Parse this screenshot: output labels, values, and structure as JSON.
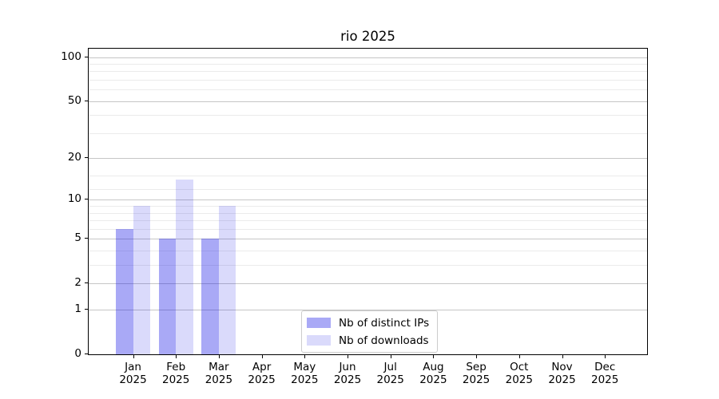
{
  "title": "rio 2025",
  "chart_data": {
    "type": "bar",
    "title": "rio 2025",
    "xlabel": "",
    "ylabel": "",
    "y_scale": "log1p",
    "ylim": [
      0,
      114
    ],
    "grid": true,
    "legend_position": "lower center",
    "categories": [
      "Jan",
      "Feb",
      "Mar",
      "Apr",
      "May",
      "Jun",
      "Jul",
      "Aug",
      "Sep",
      "Oct",
      "Nov",
      "Dec"
    ],
    "category_year_line": "2025",
    "series": [
      {
        "name": "Nb of distinct IPs",
        "color": "rgba(10,10,230,0.35)",
        "color_hex": "#a9a9f6",
        "values": [
          6,
          5,
          5,
          0,
          0,
          0,
          0,
          0,
          0,
          0,
          0,
          0
        ]
      },
      {
        "name": "Nb of downloads",
        "color": "rgba(10,10,230,0.15)",
        "color_hex": "#dadafb",
        "values": [
          9,
          14,
          9,
          0,
          0,
          0,
          0,
          0,
          0,
          0,
          0,
          0
        ]
      }
    ],
    "y_major_ticks": [
      0,
      1,
      2,
      5,
      10,
      20,
      50,
      100
    ],
    "y_minor_ticks": [
      3,
      4,
      6,
      7,
      8,
      9,
      12,
      15,
      30,
      40,
      60,
      70,
      80,
      90
    ]
  },
  "colors": {
    "major_grid": "#c6c6c6",
    "minor_grid": "#ebebeb",
    "spine": "#000000",
    "background": "#ffffff",
    "text": "#000000"
  }
}
